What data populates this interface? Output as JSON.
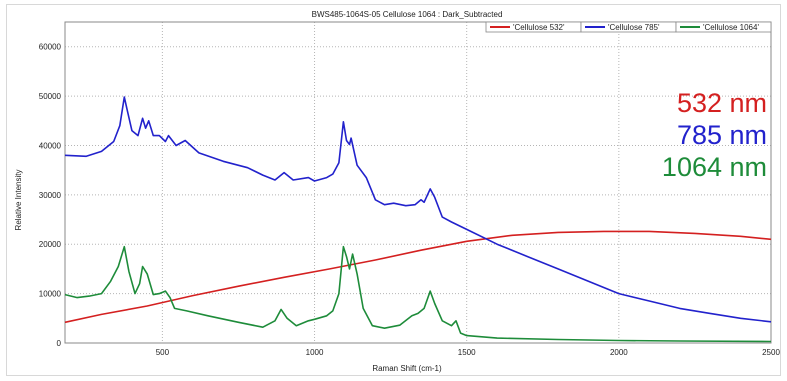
{
  "chart_data": {
    "type": "line",
    "title": "BWS485-1064S-05  Cellulose 1064 : Dark_Subtracted",
    "xlabel": "Raman Shift (cm-1)",
    "ylabel": "Relative Intensity",
    "xlim": [
      180,
      2500
    ],
    "ylim": [
      0,
      65000
    ],
    "x_ticks": [
      500,
      1000,
      1500,
      2000,
      2500
    ],
    "y_ticks": [
      0,
      10000,
      20000,
      30000,
      40000,
      50000,
      60000
    ],
    "grid": true,
    "legend_position": "top-right",
    "legend_entries": [
      "Cellulose 532",
      "Cellulose 785",
      "Cellulose 1064"
    ],
    "annotations": [
      "532 nm",
      "785 nm",
      "1064 nm"
    ],
    "series": [
      {
        "name": "Cellulose 532",
        "color": "#d42020",
        "points": [
          [
            180,
            4200
          ],
          [
            300,
            5800
          ],
          [
            450,
            7500
          ],
          [
            600,
            9600
          ],
          [
            750,
            11500
          ],
          [
            900,
            13300
          ],
          [
            1050,
            15000
          ],
          [
            1200,
            16800
          ],
          [
            1350,
            18800
          ],
          [
            1500,
            20600
          ],
          [
            1650,
            21800
          ],
          [
            1800,
            22400
          ],
          [
            1950,
            22600
          ],
          [
            2100,
            22600
          ],
          [
            2250,
            22200
          ],
          [
            2400,
            21600
          ],
          [
            2500,
            21000
          ]
        ]
      },
      {
        "name": "Cellulose 785",
        "color": "#2222cc",
        "points": [
          [
            180,
            38000
          ],
          [
            250,
            37800
          ],
          [
            300,
            38800
          ],
          [
            340,
            40800
          ],
          [
            360,
            44000
          ],
          [
            375,
            49800
          ],
          [
            385,
            47000
          ],
          [
            400,
            43000
          ],
          [
            420,
            42000
          ],
          [
            435,
            45500
          ],
          [
            445,
            43500
          ],
          [
            455,
            45000
          ],
          [
            470,
            42000
          ],
          [
            490,
            42000
          ],
          [
            510,
            40800
          ],
          [
            520,
            42000
          ],
          [
            545,
            40000
          ],
          [
            575,
            41000
          ],
          [
            620,
            38500
          ],
          [
            700,
            36800
          ],
          [
            780,
            35500
          ],
          [
            830,
            34000
          ],
          [
            870,
            33000
          ],
          [
            900,
            34500
          ],
          [
            930,
            33000
          ],
          [
            980,
            33500
          ],
          [
            1000,
            32800
          ],
          [
            1040,
            33500
          ],
          [
            1060,
            34200
          ],
          [
            1080,
            36500
          ],
          [
            1095,
            44800
          ],
          [
            1105,
            41000
          ],
          [
            1115,
            40200
          ],
          [
            1120,
            41500
          ],
          [
            1140,
            36000
          ],
          [
            1170,
            33500
          ],
          [
            1200,
            29000
          ],
          [
            1230,
            28000
          ],
          [
            1260,
            28300
          ],
          [
            1300,
            27800
          ],
          [
            1330,
            28000
          ],
          [
            1350,
            29000
          ],
          [
            1360,
            28500
          ],
          [
            1380,
            31200
          ],
          [
            1395,
            29500
          ],
          [
            1420,
            25500
          ],
          [
            1450,
            24500
          ],
          [
            1500,
            23000
          ],
          [
            1600,
            20000
          ],
          [
            1700,
            17500
          ],
          [
            1800,
            15000
          ],
          [
            1900,
            12500
          ],
          [
            2000,
            10000
          ],
          [
            2100,
            8500
          ],
          [
            2200,
            7000
          ],
          [
            2300,
            6000
          ],
          [
            2400,
            5000
          ],
          [
            2500,
            4300
          ]
        ]
      },
      {
        "name": "Cellulose 1064",
        "color": "#1e8c3a",
        "points": [
          [
            180,
            9800
          ],
          [
            220,
            9200
          ],
          [
            260,
            9500
          ],
          [
            300,
            10000
          ],
          [
            330,
            12500
          ],
          [
            355,
            15500
          ],
          [
            375,
            19500
          ],
          [
            390,
            14500
          ],
          [
            410,
            10000
          ],
          [
            425,
            12000
          ],
          [
            435,
            15500
          ],
          [
            450,
            14000
          ],
          [
            470,
            9800
          ],
          [
            490,
            10000
          ],
          [
            510,
            10500
          ],
          [
            525,
            9200
          ],
          [
            540,
            7000
          ],
          [
            580,
            6500
          ],
          [
            650,
            5500
          ],
          [
            750,
            4200
          ],
          [
            830,
            3200
          ],
          [
            870,
            4500
          ],
          [
            890,
            6800
          ],
          [
            910,
            5000
          ],
          [
            940,
            3500
          ],
          [
            980,
            4500
          ],
          [
            1000,
            4800
          ],
          [
            1040,
            5500
          ],
          [
            1060,
            6500
          ],
          [
            1080,
            10000
          ],
          [
            1095,
            19500
          ],
          [
            1105,
            17500
          ],
          [
            1115,
            15000
          ],
          [
            1125,
            18000
          ],
          [
            1140,
            14000
          ],
          [
            1160,
            7000
          ],
          [
            1190,
            3500
          ],
          [
            1230,
            3000
          ],
          [
            1280,
            3600
          ],
          [
            1320,
            5500
          ],
          [
            1340,
            6000
          ],
          [
            1360,
            7000
          ],
          [
            1380,
            10500
          ],
          [
            1395,
            8000
          ],
          [
            1420,
            4500
          ],
          [
            1450,
            3500
          ],
          [
            1465,
            4500
          ],
          [
            1480,
            2000
          ],
          [
            1500,
            1500
          ],
          [
            1600,
            1000
          ],
          [
            1800,
            700
          ],
          [
            2000,
            500
          ],
          [
            2200,
            400
          ],
          [
            2500,
            300
          ]
        ]
      }
    ]
  }
}
